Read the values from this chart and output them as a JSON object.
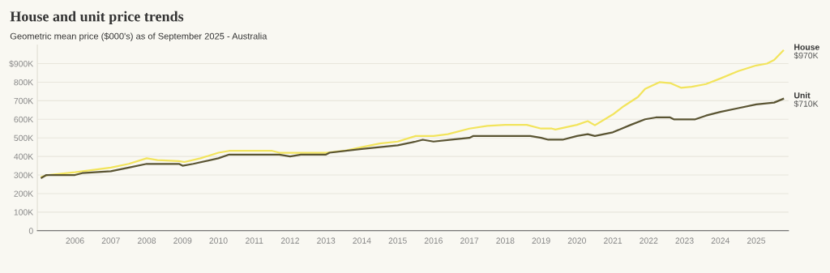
{
  "chart_data": {
    "type": "line",
    "title": "House and unit price trends",
    "subtitle": "Geometric mean price ($000's) as of September 2025 - Australia",
    "series": [
      {
        "name": "House",
        "color": "#f2e45c",
        "x": [
          2005.07,
          2005.25,
          2006.0,
          2007.0,
          2007.5,
          2008.0,
          2008.3,
          2008.9,
          2009.05,
          2009.5,
          2010.0,
          2010.3,
          2011.5,
          2011.7,
          2013.0,
          2013.5,
          2014.0,
          2014.5,
          2015.0,
          2015.5,
          2016.0,
          2016.4,
          2017.0,
          2017.5,
          2018.0,
          2018.6,
          2019.0,
          2019.3,
          2019.4,
          2020.0,
          2020.3,
          2020.5,
          2021.0,
          2021.3,
          2021.7,
          2021.9,
          2022.3,
          2022.6,
          2022.9,
          2023.2,
          2023.6,
          2024.0,
          2024.5,
          2025.0,
          2025.3,
          2025.5,
          2025.75
        ],
        "values": [
          290,
          300,
          315,
          340,
          360,
          390,
          380,
          375,
          370,
          390,
          420,
          430,
          430,
          420,
          420,
          430,
          450,
          470,
          480,
          510,
          510,
          520,
          550,
          565,
          570,
          570,
          550,
          550,
          545,
          570,
          590,
          568,
          626,
          670,
          720,
          764,
          800,
          795,
          770,
          775,
          790,
          820,
          860,
          890,
          900,
          920,
          970
        ]
      },
      {
        "name": "Unit",
        "color": "#5a5432",
        "x": [
          2005.07,
          2005.2,
          2006.0,
          2006.2,
          2007.0,
          2007.5,
          2008.0,
          2008.9,
          2009.0,
          2009.3,
          2010.0,
          2010.3,
          2011.7,
          2012.0,
          2012.3,
          2013.0,
          2013.1,
          2014.0,
          2014.5,
          2015.0,
          2015.5,
          2015.7,
          2016.0,
          2016.5,
          2017.0,
          2017.1,
          2018.7,
          2019.0,
          2019.2,
          2019.6,
          2020.0,
          2020.3,
          2020.5,
          2021.0,
          2021.5,
          2021.9,
          2022.2,
          2022.6,
          2022.7,
          2023.3,
          2023.6,
          2024.0,
          2024.5,
          2025.0,
          2025.5,
          2025.75
        ],
        "values": [
          285,
          300,
          300,
          310,
          320,
          340,
          360,
          360,
          350,
          360,
          390,
          410,
          410,
          400,
          410,
          410,
          420,
          440,
          450,
          460,
          480,
          490,
          480,
          490,
          500,
          510,
          510,
          500,
          490,
          490,
          510,
          520,
          510,
          530,
          570,
          600,
          610,
          610,
          600,
          600,
          620,
          640,
          660,
          680,
          690,
          710
        ]
      }
    ],
    "annotations": [
      {
        "text": "$970K",
        "x": 2025.75,
        "y": 970
      },
      {
        "text": "$710K",
        "x": 2025.75,
        "y": 710
      }
    ],
    "xlim": [
      2004.95,
      2025.9
    ],
    "xticks": [
      2006,
      2007,
      2008,
      2009,
      2010,
      2011,
      2012,
      2013,
      2014,
      2015,
      2016,
      2017,
      2018,
      2019,
      2020,
      2021,
      2022,
      2023,
      2024,
      2025
    ],
    "ylim": [
      0,
      1000
    ],
    "yticks": [
      0,
      {
        "value": 100,
        "label": "100K"
      },
      {
        "value": 200,
        "label": "200K"
      },
      {
        "value": 300,
        "label": "300K"
      },
      {
        "value": 400,
        "label": "400K"
      },
      {
        "value": 500,
        "label": "500K"
      },
      {
        "value": 600,
        "label": "600K"
      },
      {
        "value": 700,
        "label": "700K"
      },
      {
        "value": 800,
        "label": "800K"
      },
      {
        "value": 900,
        "label": "$900K"
      }
    ],
    "grid": "y",
    "legend": false,
    "marker": "none",
    "line_style": "solid"
  }
}
